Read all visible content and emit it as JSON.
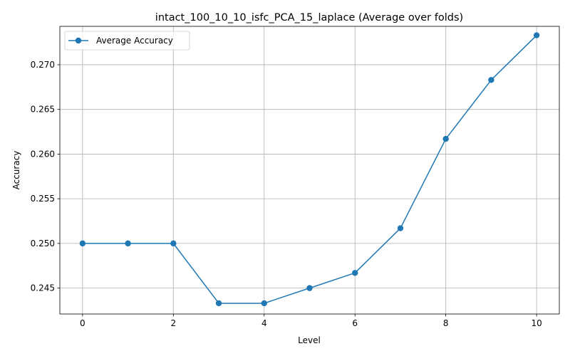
{
  "chart_data": {
    "type": "line",
    "title": "intact_100_10_10_isfc_PCA_15_laplace (Average over folds)",
    "xlabel": "Level",
    "ylabel": "Accuracy",
    "xlim": [
      -0.5,
      10.5
    ],
    "ylim": [
      0.2421,
      0.2743
    ],
    "xticks": [
      0,
      2,
      4,
      6,
      8,
      10
    ],
    "yticks": [
      0.245,
      0.25,
      0.255,
      0.26,
      0.265,
      0.27
    ],
    "ytick_labels": [
      "0.245",
      "0.250",
      "0.255",
      "0.260",
      "0.265",
      "0.270"
    ],
    "grid": true,
    "legend_position": "top-left",
    "series": [
      {
        "name": "Average Accuracy",
        "color": "#1f77b4",
        "marker": "circle",
        "x": [
          0,
          1,
          2,
          3,
          4,
          5,
          6,
          7,
          8,
          9,
          10
        ],
        "y": [
          0.25,
          0.25,
          0.25,
          0.2433,
          0.2433,
          0.245,
          0.2467,
          0.2517,
          0.2617,
          0.2683,
          0.2733
        ]
      }
    ]
  }
}
